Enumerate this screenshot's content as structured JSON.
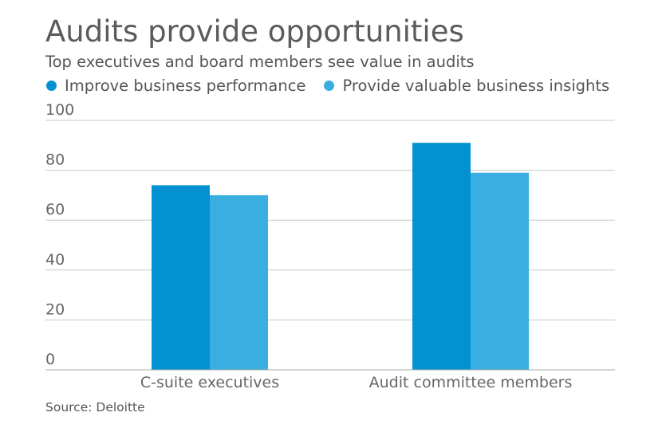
{
  "title": "Audits provide opportunities",
  "subtitle": "Top executives and board members see value in audits",
  "source": "Source: Deloitte",
  "colors": {
    "series1": "#0292d1",
    "series2": "#3aaee0",
    "grid": "#c9c9c9",
    "axis": "#a8a8a8",
    "text": "#555555"
  },
  "chart_data": {
    "type": "bar",
    "categories": [
      "C-suite executives",
      "Audit committee members"
    ],
    "series": [
      {
        "name": "Improve business performance",
        "values": [
          74,
          91
        ]
      },
      {
        "name": "Provide valuable business insights",
        "values": [
          70,
          79
        ]
      }
    ],
    "ylim": [
      0,
      100
    ],
    "yticks": [
      0,
      20,
      40,
      60,
      80,
      100
    ],
    "grid": true,
    "legend": "top-left"
  }
}
